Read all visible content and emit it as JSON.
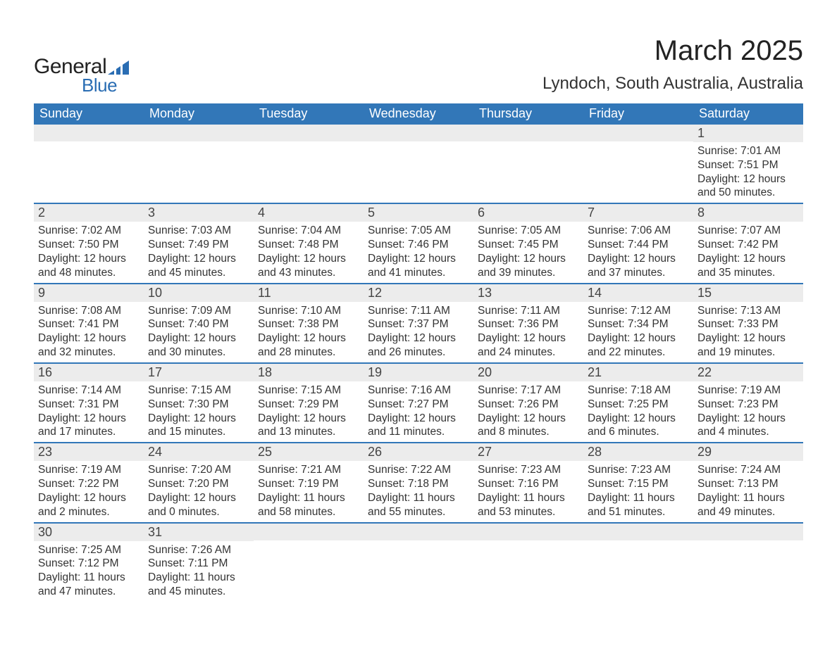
{
  "logo": {
    "text_general": "General",
    "text_blue": "Blue",
    "flag_color": "#2a6db3"
  },
  "header": {
    "month_title": "March 2025",
    "location": "Lyndoch, South Australia, Australia"
  },
  "styling": {
    "header_bg": "#3277b8",
    "header_text": "#ffffff",
    "daynum_bg": "#ececec",
    "row_border": "#3277b8",
    "body_text": "#333333",
    "page_bg": "#ffffff",
    "font_family": "Arial",
    "month_title_fontsize": 40,
    "location_fontsize": 24,
    "header_cell_fontsize": 18,
    "daynum_fontsize": 18,
    "body_fontsize": 15.5
  },
  "calendar": {
    "day_names": [
      "Sunday",
      "Monday",
      "Tuesday",
      "Wednesday",
      "Thursday",
      "Friday",
      "Saturday"
    ],
    "weeks": [
      [
        null,
        null,
        null,
        null,
        null,
        null,
        {
          "n": "1",
          "sr": "7:01 AM",
          "ss": "7:51 PM",
          "dl": "12 hours and 50 minutes."
        }
      ],
      [
        {
          "n": "2",
          "sr": "7:02 AM",
          "ss": "7:50 PM",
          "dl": "12 hours and 48 minutes."
        },
        {
          "n": "3",
          "sr": "7:03 AM",
          "ss": "7:49 PM",
          "dl": "12 hours and 45 minutes."
        },
        {
          "n": "4",
          "sr": "7:04 AM",
          "ss": "7:48 PM",
          "dl": "12 hours and 43 minutes."
        },
        {
          "n": "5",
          "sr": "7:05 AM",
          "ss": "7:46 PM",
          "dl": "12 hours and 41 minutes."
        },
        {
          "n": "6",
          "sr": "7:05 AM",
          "ss": "7:45 PM",
          "dl": "12 hours and 39 minutes."
        },
        {
          "n": "7",
          "sr": "7:06 AM",
          "ss": "7:44 PM",
          "dl": "12 hours and 37 minutes."
        },
        {
          "n": "8",
          "sr": "7:07 AM",
          "ss": "7:42 PM",
          "dl": "12 hours and 35 minutes."
        }
      ],
      [
        {
          "n": "9",
          "sr": "7:08 AM",
          "ss": "7:41 PM",
          "dl": "12 hours and 32 minutes."
        },
        {
          "n": "10",
          "sr": "7:09 AM",
          "ss": "7:40 PM",
          "dl": "12 hours and 30 minutes."
        },
        {
          "n": "11",
          "sr": "7:10 AM",
          "ss": "7:38 PM",
          "dl": "12 hours and 28 minutes."
        },
        {
          "n": "12",
          "sr": "7:11 AM",
          "ss": "7:37 PM",
          "dl": "12 hours and 26 minutes."
        },
        {
          "n": "13",
          "sr": "7:11 AM",
          "ss": "7:36 PM",
          "dl": "12 hours and 24 minutes."
        },
        {
          "n": "14",
          "sr": "7:12 AM",
          "ss": "7:34 PM",
          "dl": "12 hours and 22 minutes."
        },
        {
          "n": "15",
          "sr": "7:13 AM",
          "ss": "7:33 PM",
          "dl": "12 hours and 19 minutes."
        }
      ],
      [
        {
          "n": "16",
          "sr": "7:14 AM",
          "ss": "7:31 PM",
          "dl": "12 hours and 17 minutes."
        },
        {
          "n": "17",
          "sr": "7:15 AM",
          "ss": "7:30 PM",
          "dl": "12 hours and 15 minutes."
        },
        {
          "n": "18",
          "sr": "7:15 AM",
          "ss": "7:29 PM",
          "dl": "12 hours and 13 minutes."
        },
        {
          "n": "19",
          "sr": "7:16 AM",
          "ss": "7:27 PM",
          "dl": "12 hours and 11 minutes."
        },
        {
          "n": "20",
          "sr": "7:17 AM",
          "ss": "7:26 PM",
          "dl": "12 hours and 8 minutes."
        },
        {
          "n": "21",
          "sr": "7:18 AM",
          "ss": "7:25 PM",
          "dl": "12 hours and 6 minutes."
        },
        {
          "n": "22",
          "sr": "7:19 AM",
          "ss": "7:23 PM",
          "dl": "12 hours and 4 minutes."
        }
      ],
      [
        {
          "n": "23",
          "sr": "7:19 AM",
          "ss": "7:22 PM",
          "dl": "12 hours and 2 minutes."
        },
        {
          "n": "24",
          "sr": "7:20 AM",
          "ss": "7:20 PM",
          "dl": "12 hours and 0 minutes."
        },
        {
          "n": "25",
          "sr": "7:21 AM",
          "ss": "7:19 PM",
          "dl": "11 hours and 58 minutes."
        },
        {
          "n": "26",
          "sr": "7:22 AM",
          "ss": "7:18 PM",
          "dl": "11 hours and 55 minutes."
        },
        {
          "n": "27",
          "sr": "7:23 AM",
          "ss": "7:16 PM",
          "dl": "11 hours and 53 minutes."
        },
        {
          "n": "28",
          "sr": "7:23 AM",
          "ss": "7:15 PM",
          "dl": "11 hours and 51 minutes."
        },
        {
          "n": "29",
          "sr": "7:24 AM",
          "ss": "7:13 PM",
          "dl": "11 hours and 49 minutes."
        }
      ],
      [
        {
          "n": "30",
          "sr": "7:25 AM",
          "ss": "7:12 PM",
          "dl": "11 hours and 47 minutes."
        },
        {
          "n": "31",
          "sr": "7:26 AM",
          "ss": "7:11 PM",
          "dl": "11 hours and 45 minutes."
        },
        null,
        null,
        null,
        null,
        null
      ]
    ],
    "labels": {
      "sunrise_prefix": "Sunrise: ",
      "sunset_prefix": "Sunset: ",
      "daylight_prefix": "Daylight: "
    }
  }
}
